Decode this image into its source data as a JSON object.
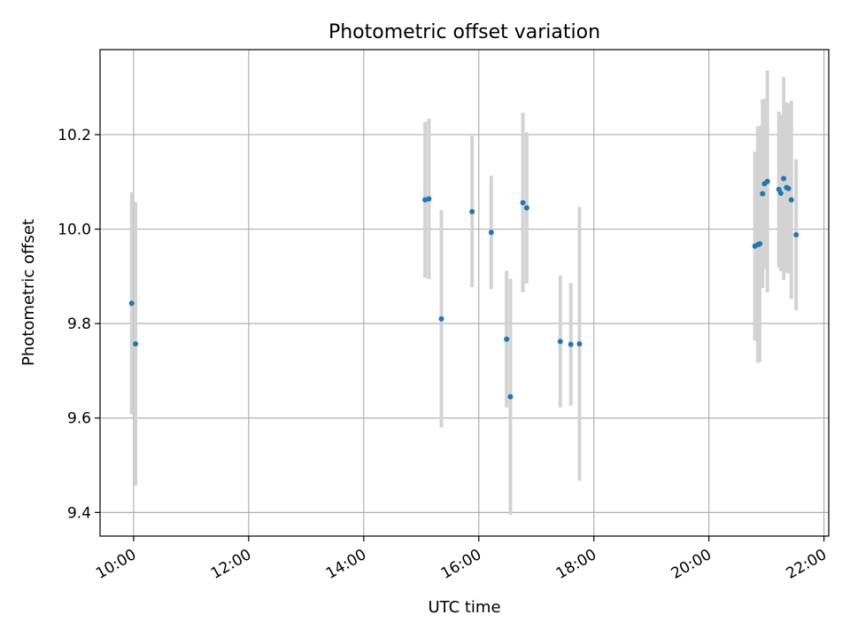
{
  "chart_data": {
    "type": "scatter",
    "title": "Photometric offset variation",
    "xlabel": "UTC time",
    "ylabel": "Photometric offset",
    "x_tick_labels": [
      "10:00",
      "12:00",
      "14:00",
      "16:00",
      "18:00",
      "20:00",
      "22:00"
    ],
    "y_tick_labels": [
      "9.4",
      "9.6",
      "9.8",
      "10.0",
      "10.2"
    ],
    "x_ticks": [
      "10:00",
      "12:00",
      "14:00",
      "16:00",
      "18:00",
      "20:00",
      "22:00"
    ],
    "y_ticks": [
      9.4,
      9.6,
      9.8,
      10.0,
      10.2
    ],
    "xlim": [
      "09:25",
      "22:05"
    ],
    "ylim": [
      9.35,
      10.38
    ],
    "grid": true,
    "colors": {
      "marker": "#1f77b4",
      "errorbar": "#d3d3d3",
      "grid": "#b0b0b0"
    },
    "points": [
      {
        "x": "09:58",
        "y": 9.843,
        "err": 0.235
      },
      {
        "x": "10:02",
        "y": 9.757,
        "err": 0.3
      },
      {
        "x": "15:04",
        "y": 10.062,
        "err": 0.165
      },
      {
        "x": "15:08",
        "y": 10.064,
        "err": 0.17
      },
      {
        "x": "15:21",
        "y": 9.81,
        "err": 0.23
      },
      {
        "x": "15:53",
        "y": 10.037,
        "err": 0.16
      },
      {
        "x": "16:13",
        "y": 9.993,
        "err": 0.12
      },
      {
        "x": "16:29",
        "y": 9.767,
        "err": 0.145
      },
      {
        "x": "16:33",
        "y": 9.645,
        "err": 0.25
      },
      {
        "x": "16:46",
        "y": 10.056,
        "err": 0.19
      },
      {
        "x": "16:50",
        "y": 10.045,
        "err": 0.16
      },
      {
        "x": "17:25",
        "y": 9.762,
        "err": 0.14
      },
      {
        "x": "17:36",
        "y": 9.756,
        "err": 0.13
      },
      {
        "x": "17:45",
        "y": 9.757,
        "err": 0.29
      },
      {
        "x": "20:48",
        "y": 9.964,
        "err": 0.2
      },
      {
        "x": "20:51",
        "y": 9.967,
        "err": 0.25
      },
      {
        "x": "20:53",
        "y": 9.969,
        "err": 0.25
      },
      {
        "x": "20:56",
        "y": 10.075,
        "err": 0.2
      },
      {
        "x": "20:58",
        "y": 10.096,
        "err": 0.18
      },
      {
        "x": "21:01",
        "y": 10.101,
        "err": 0.235
      },
      {
        "x": "21:13",
        "y": 10.084,
        "err": 0.165
      },
      {
        "x": "21:15",
        "y": 10.076,
        "err": 0.165
      },
      {
        "x": "21:18",
        "y": 10.107,
        "err": 0.215
      },
      {
        "x": "21:21",
        "y": 10.088,
        "err": 0.18
      },
      {
        "x": "21:23",
        "y": 10.086,
        "err": 0.18
      },
      {
        "x": "21:26",
        "y": 10.062,
        "err": 0.21
      },
      {
        "x": "21:31",
        "y": 9.988,
        "err": 0.16
      }
    ]
  }
}
